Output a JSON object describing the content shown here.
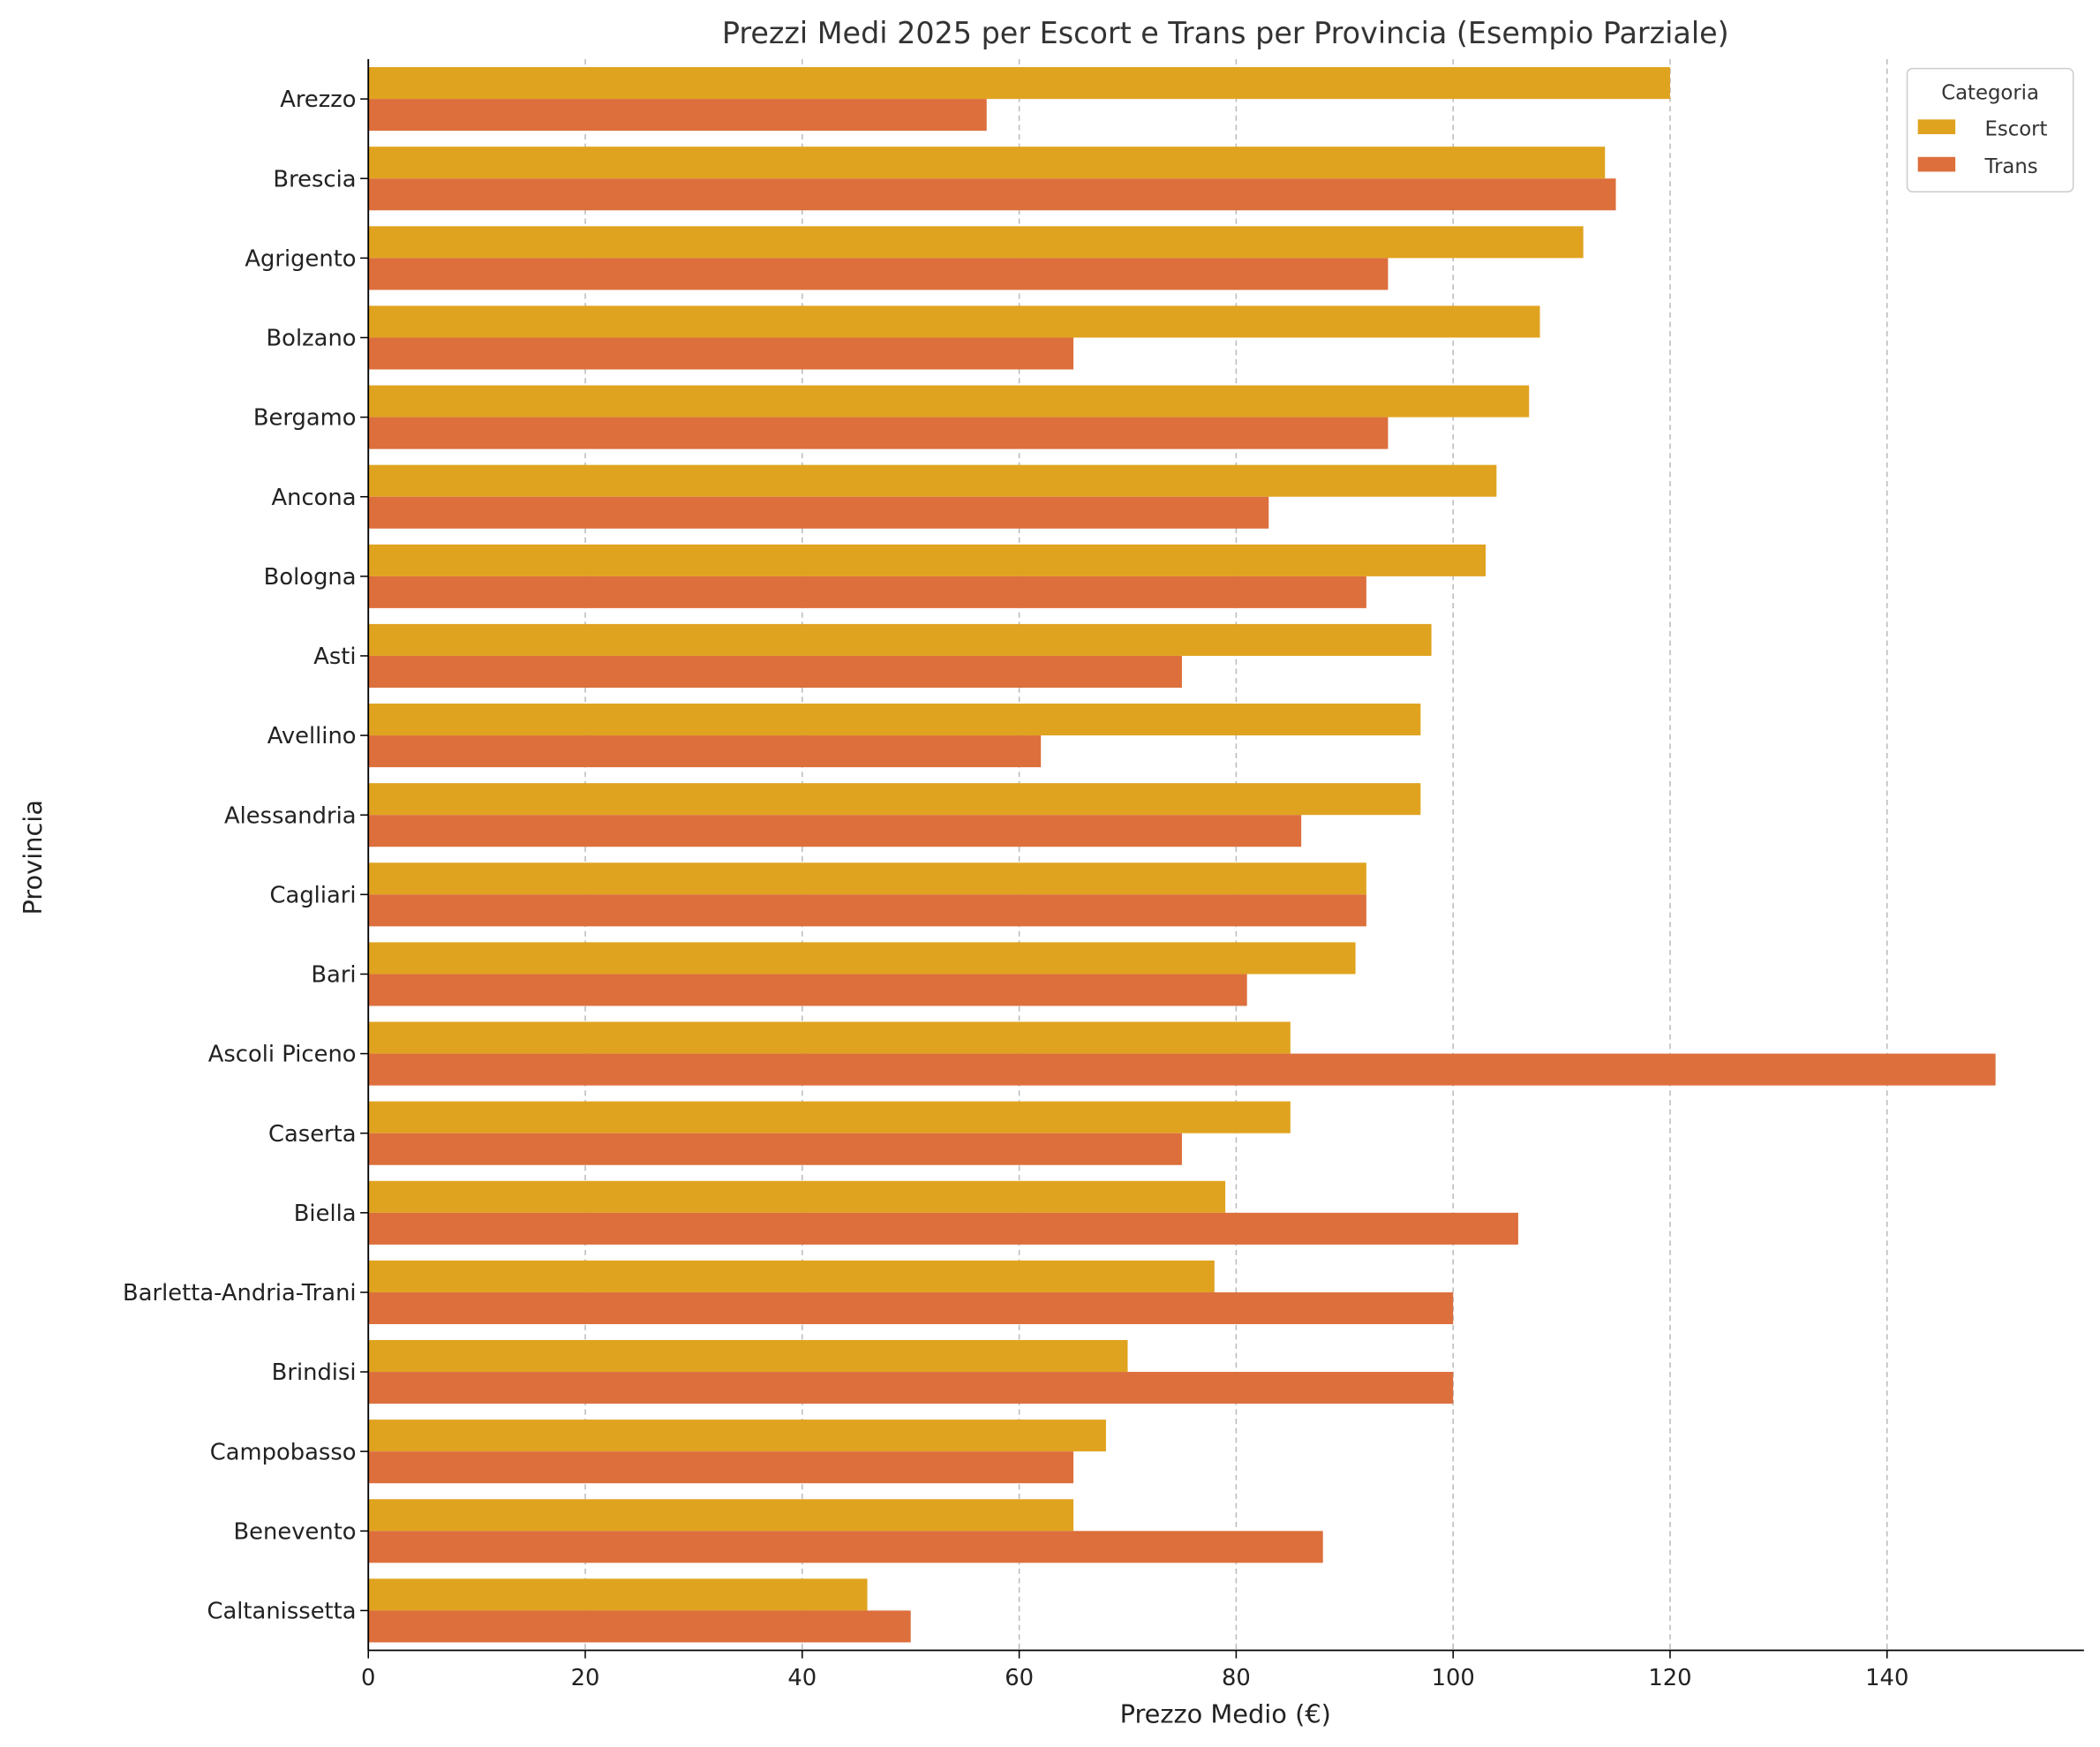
{
  "chart_data": {
    "type": "bar",
    "orientation": "horizontal",
    "title": "Prezzi Medi 2025 per Escort e Trans per Provincia (Esempio Parziale)",
    "xlabel": "Prezzo Medio (€)",
    "ylabel": "Provincia",
    "xlim": [
      0,
      158
    ],
    "xticks": [
      0,
      20,
      40,
      60,
      80,
      100,
      120,
      140
    ],
    "grid": "x dashed",
    "legend": {
      "title": "Categoria",
      "placement": "top-right"
    },
    "categories": [
      "Arezzo",
      "Brescia",
      "Agrigento",
      "Bolzano",
      "Bergamo",
      "Ancona",
      "Bologna",
      "Asti",
      "Avellino",
      "Alessandria",
      "Cagliari",
      "Bari",
      "Ascoli Piceno",
      "Caserta",
      "Biella",
      "Barletta-Andria-Trani",
      "Brindisi",
      "Campobasso",
      "Benevento",
      "Caltanissetta"
    ],
    "series": [
      {
        "name": "Escort",
        "color": "#E0A31F",
        "values": [
          120,
          114,
          112,
          108,
          107,
          104,
          103,
          98,
          97,
          97,
          92,
          91,
          85,
          85,
          79,
          78,
          70,
          68,
          65,
          46
        ]
      },
      {
        "name": "Trans",
        "color": "#DC6F3C",
        "values": [
          57,
          115,
          94,
          65,
          94,
          83,
          92,
          75,
          62,
          86,
          92,
          81,
          150,
          75,
          106,
          100,
          100,
          65,
          88,
          50
        ]
      }
    ]
  }
}
